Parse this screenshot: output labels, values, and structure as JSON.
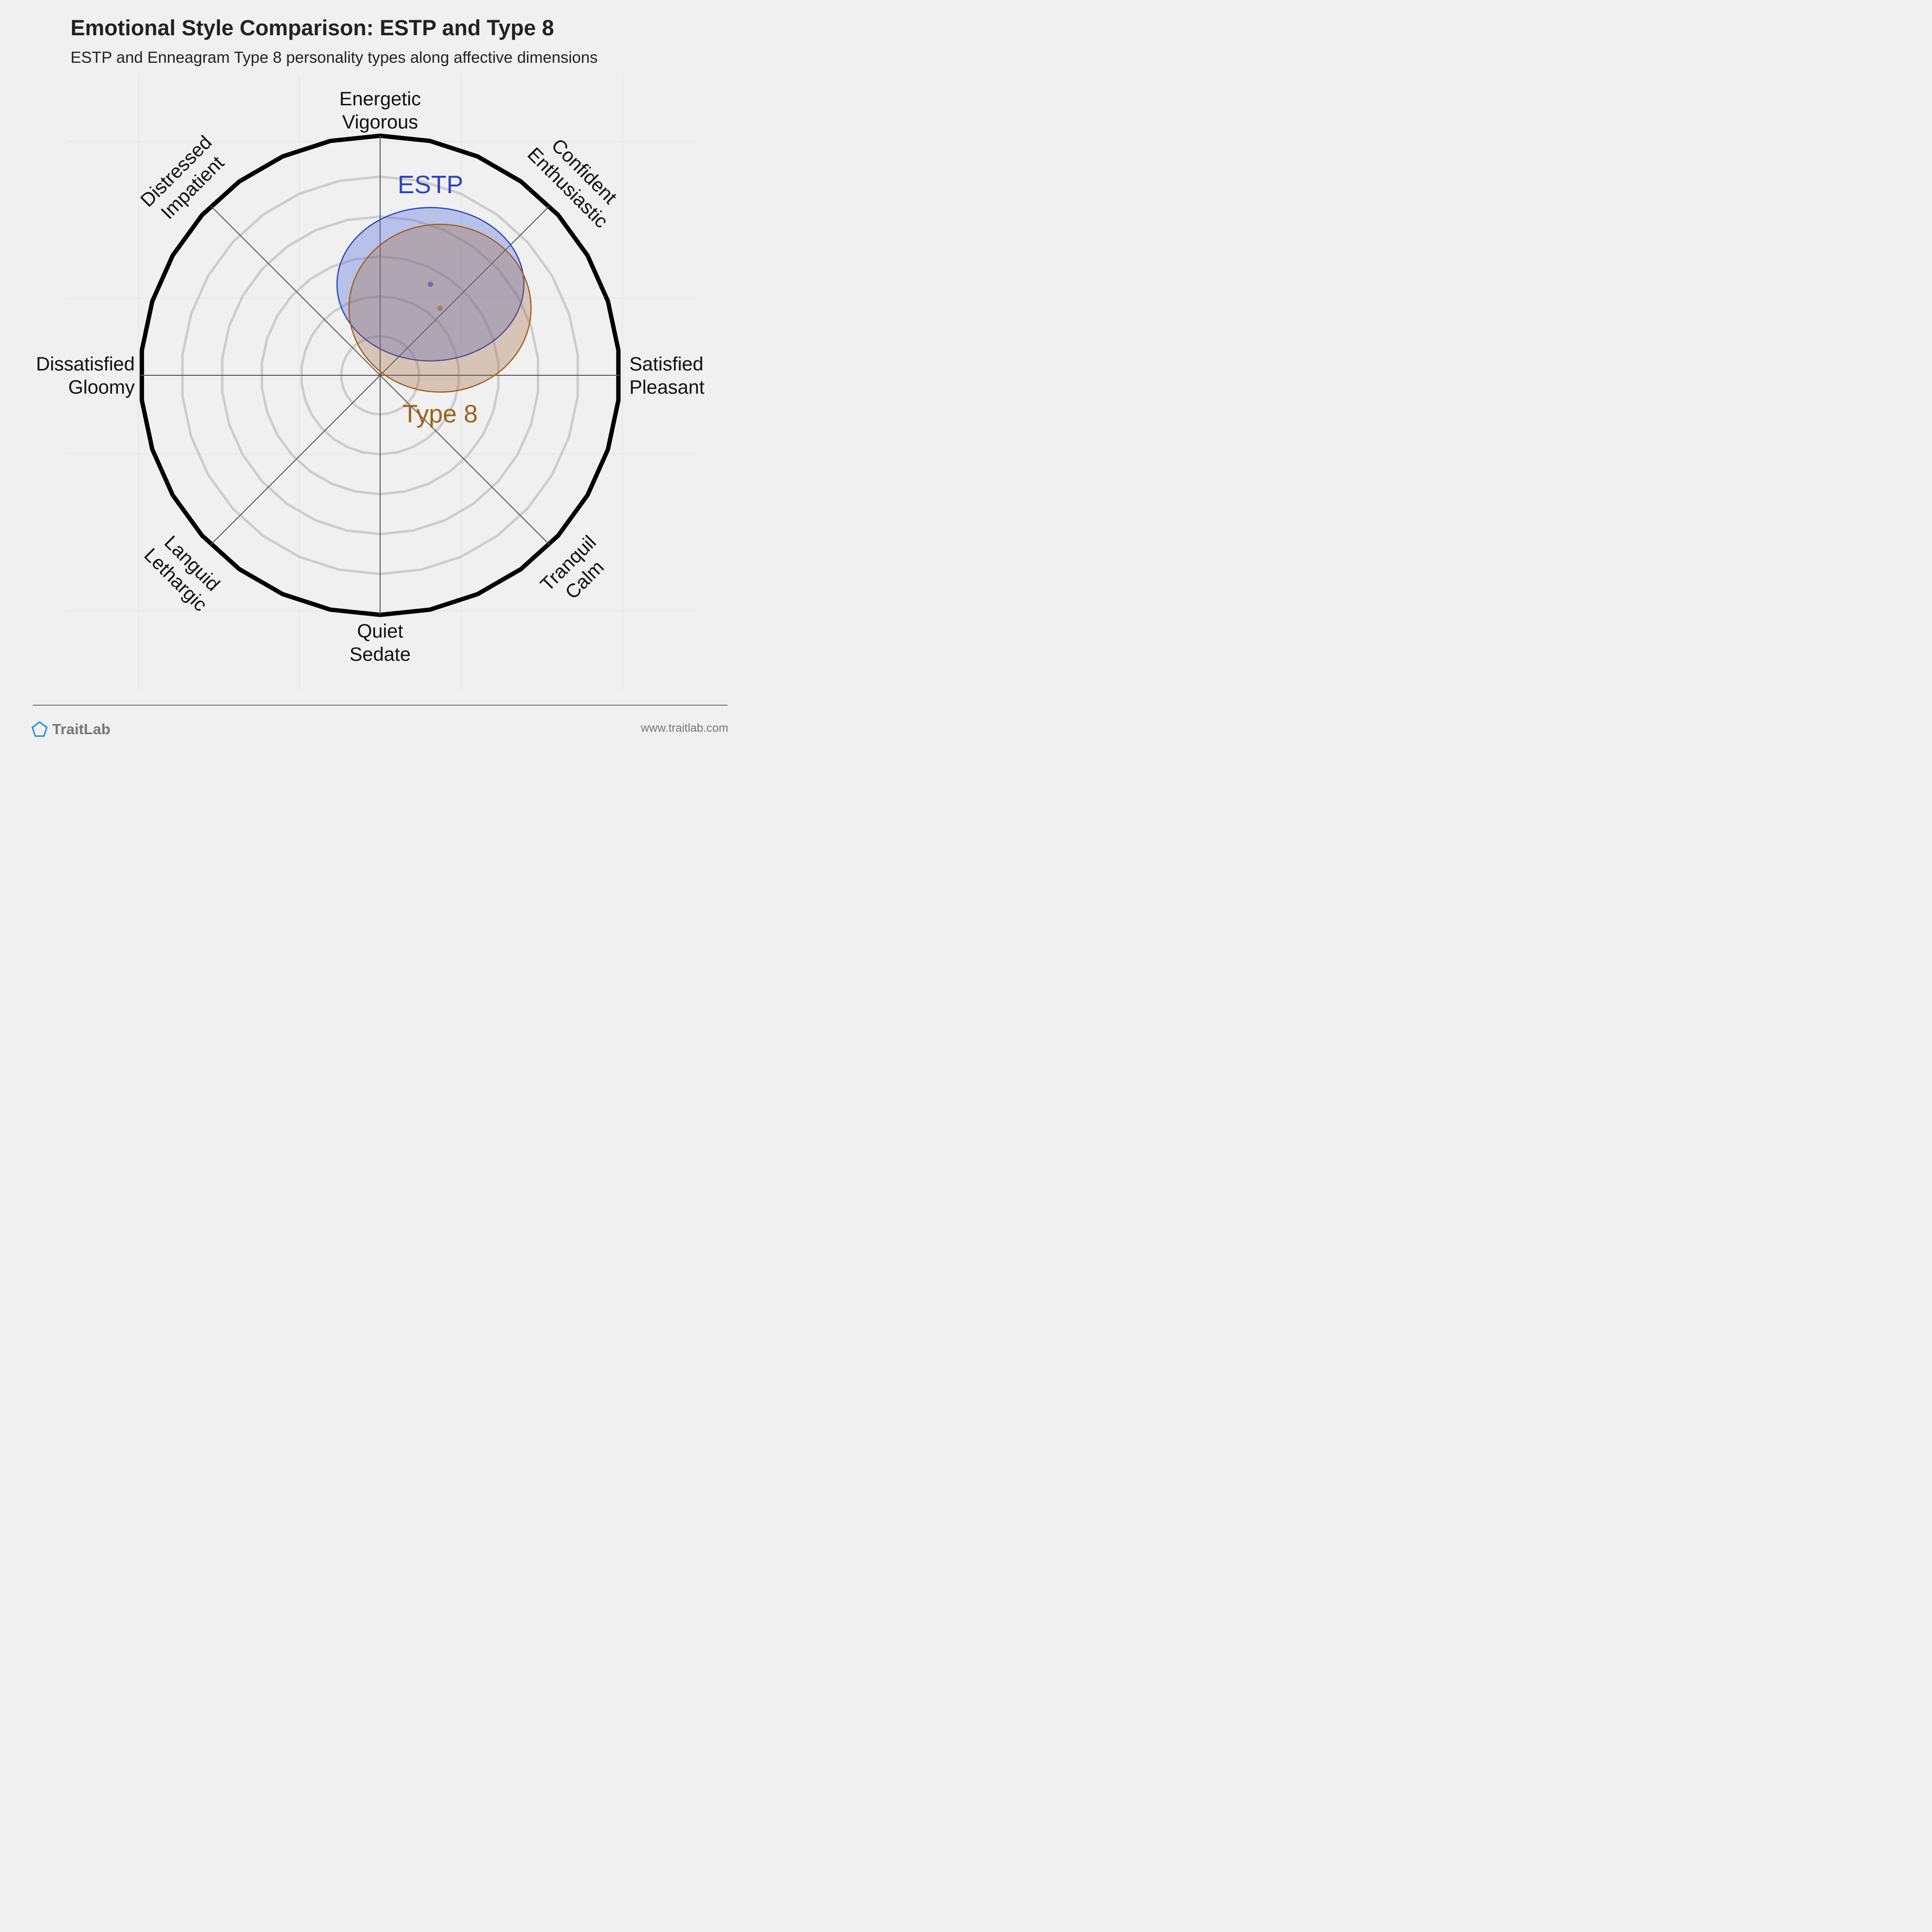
{
  "title": "Emotional Style Comparison: ESTP and Type 8",
  "subtitle": "ESTP and Enneagram Type 8 personality types along affective dimensions",
  "brand": {
    "name": "TraitLab",
    "icon": "pentagon-logo-icon",
    "url": "www.traitlab.com"
  },
  "colors": {
    "background": "#f0f0f0",
    "ring": "#cccccc",
    "outer_ring": "#000000",
    "spoke": "#555555",
    "brand": "#777777"
  },
  "chart_data": {
    "type": "scatter",
    "title": "Emotional Style Comparison: ESTP and Type 8",
    "subtitle": "ESTP and Enneagram Type 8 personality types along affective dimensions",
    "x_axis": {
      "negative": "Dissatisfied / Gloomy",
      "positive": "Satisfied / Pleasant",
      "range": [
        -1,
        1
      ]
    },
    "y_axis": {
      "negative": "Quiet / Sedate",
      "positive": "Energetic / Vigorous",
      "range": [
        -1,
        1
      ]
    },
    "rings": 6,
    "axes": [
      {
        "id": "energetic",
        "angle": 90,
        "lines": [
          "Energetic",
          "Vigorous"
        ]
      },
      {
        "id": "confident",
        "angle": 45,
        "lines": [
          "Confident",
          "Enthusiastic"
        ]
      },
      {
        "id": "satisfied",
        "angle": 0,
        "lines": [
          "Satisfied",
          "Pleasant"
        ]
      },
      {
        "id": "tranquil",
        "angle": -45,
        "lines": [
          "Tranquil",
          "Calm"
        ]
      },
      {
        "id": "quiet",
        "angle": -90,
        "lines": [
          "Quiet",
          "Sedate"
        ]
      },
      {
        "id": "languid",
        "angle": -135,
        "lines": [
          "Languid",
          "Lethargic"
        ]
      },
      {
        "id": "dissatisfied",
        "angle": 180,
        "lines": [
          "Dissatisfied",
          "Gloomy"
        ]
      },
      {
        "id": "distressed",
        "angle": 135,
        "lines": [
          "Distressed",
          "Impatient"
        ]
      }
    ],
    "series": [
      {
        "name": "ESTP",
        "x": 0.21,
        "y": 0.38,
        "spread_x": 0.39,
        "spread_y": 0.32,
        "color": "#2a45c0",
        "fill": "#5b73e0",
        "fill_opacity": 0.38
      },
      {
        "name": "Type 8",
        "x": 0.25,
        "y": 0.28,
        "spread_x": 0.38,
        "spread_y": 0.35,
        "color": "#a0601a",
        "fill": "#a06a3c",
        "fill_opacity": 0.32
      }
    ]
  }
}
